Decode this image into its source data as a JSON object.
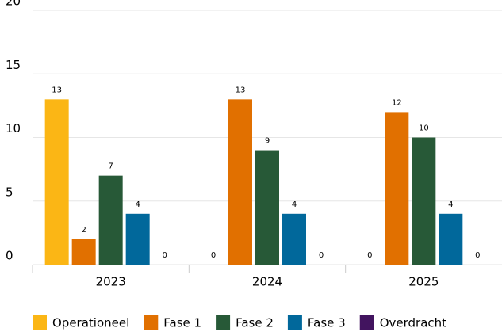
{
  "chart_data": {
    "type": "bar",
    "categories": [
      "2023",
      "2024",
      "2025"
    ],
    "series": [
      {
        "name": "Operationeel",
        "color": "#fbb615",
        "values": [
          13,
          0,
          0
        ]
      },
      {
        "name": "Fase 1",
        "color": "#e17000",
        "values": [
          2,
          13,
          12
        ]
      },
      {
        "name": "Fase 2",
        "color": "#275937",
        "values": [
          7,
          9,
          10
        ]
      },
      {
        "name": "Fase 3",
        "color": "#01689b",
        "values": [
          4,
          4,
          4
        ]
      },
      {
        "name": "Overdracht",
        "color": "#42145f",
        "values": [
          0,
          0,
          0
        ]
      }
    ],
    "ylim": [
      0,
      20
    ],
    "yticks": [
      0,
      5,
      10,
      15,
      20
    ],
    "grid": true,
    "legend": "bottom"
  }
}
